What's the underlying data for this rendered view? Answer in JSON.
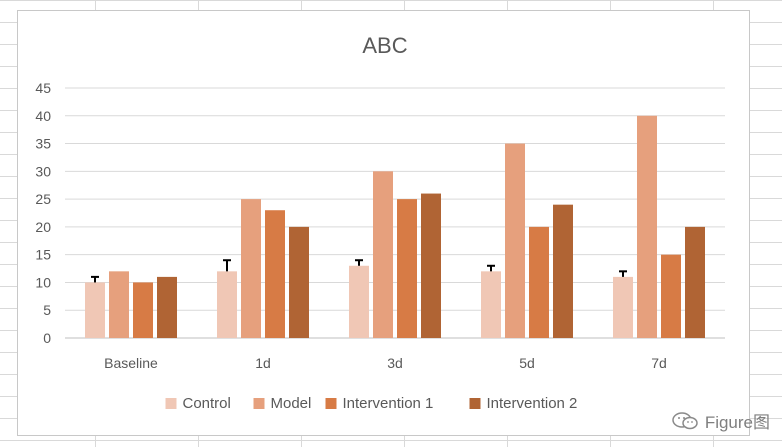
{
  "chart_data": {
    "type": "bar",
    "title": "ABC",
    "xlabel": "",
    "ylabel": "",
    "ylim": [
      0,
      45
    ],
    "yticks": [
      0,
      5,
      10,
      15,
      20,
      25,
      30,
      35,
      40,
      45
    ],
    "grid": true,
    "legend_position": "bottom",
    "categories": [
      "Baseline",
      "1d",
      "3d",
      "5d",
      "7d"
    ],
    "series": [
      {
        "name": "Control",
        "color": "#F0C7B5",
        "values": [
          10,
          12,
          13,
          12,
          11
        ],
        "error": [
          1,
          2,
          1,
          1,
          1
        ]
      },
      {
        "name": "Model",
        "color": "#E6A07D",
        "values": [
          12,
          25,
          30,
          35,
          40
        ]
      },
      {
        "name": "Intervention 1",
        "color": "#D77B45",
        "values": [
          10,
          23,
          25,
          20,
          15
        ]
      },
      {
        "name": "Intervention 2",
        "color": "#B06434",
        "values": [
          11,
          20,
          26,
          24,
          20
        ]
      }
    ]
  },
  "watermark": {
    "text": "Figure图",
    "icon": "wechat-icon"
  }
}
